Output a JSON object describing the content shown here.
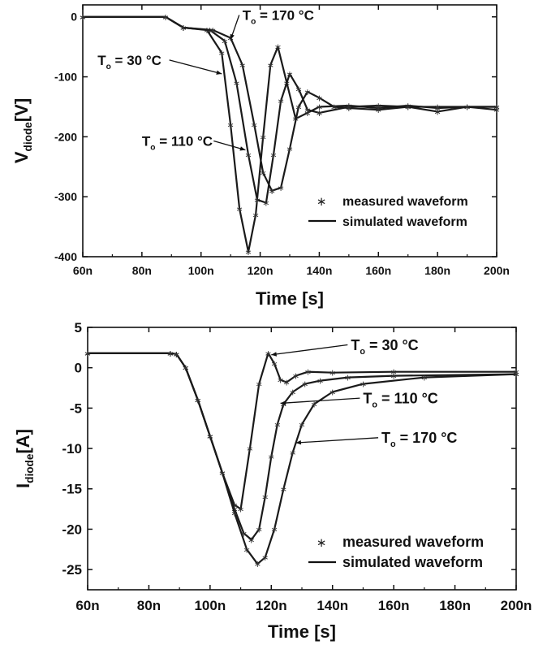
{
  "chart_data": [
    {
      "type": "line",
      "xlabel": "Time [s]",
      "ylabel": {
        "main": "V",
        "sub": "diode",
        "unit": "[V]"
      },
      "xlim": [
        60,
        200
      ],
      "ylim": [
        -400,
        20
      ],
      "x_unit_suffix": "n",
      "xticks": [
        60,
        80,
        100,
        120,
        140,
        160,
        180,
        200
      ],
      "yticks": [
        0,
        -100,
        -200,
        -300,
        -400
      ],
      "grid": false,
      "legend": {
        "placement": "bottom-right",
        "entries": [
          {
            "marker": "star",
            "label": "measured waveform"
          },
          {
            "marker": "line",
            "label": "simulated waveform"
          }
        ]
      },
      "series": [
        {
          "name": "To = 30 °C",
          "ann_main": "T",
          "ann_sub": "o",
          "ann_rest": " = 30 °C",
          "x": [
            60,
            88,
            94,
            102,
            107,
            110,
            113,
            116,
            118.5,
            121,
            123.5,
            126,
            129,
            132,
            136,
            140,
            150,
            160,
            170,
            180,
            190,
            200
          ],
          "y": [
            0,
            0,
            -18,
            -22,
            -60,
            -180,
            -320,
            -392,
            -330,
            -200,
            -80,
            -50,
            -110,
            -170,
            -160,
            -150,
            -148,
            -152,
            -148,
            -152,
            -150,
            -150
          ]
        },
        {
          "name": "To = 110 °C",
          "ann_main": "T",
          "ann_sub": "o",
          "ann_rest": " = 110 °C",
          "x": [
            60,
            88,
            94,
            103,
            108,
            112,
            116,
            119,
            122,
            124.5,
            127,
            130,
            133,
            136,
            140,
            150,
            160,
            170,
            180,
            190,
            200
          ],
          "y": [
            0,
            0,
            -18,
            -22,
            -40,
            -110,
            -230,
            -305,
            -310,
            -230,
            -140,
            -95,
            -120,
            -155,
            -160,
            -150,
            -148,
            -150,
            -150,
            -150,
            -150
          ]
        },
        {
          "name": "To = 170 °C",
          "ann_main": "T",
          "ann_sub": "o",
          "ann_rest": " = 170 °C",
          "x": [
            60,
            88,
            94,
            104,
            110,
            114,
            118,
            121,
            124,
            127,
            130,
            133,
            136,
            140,
            145,
            150,
            160,
            170,
            180,
            190,
            200
          ],
          "y": [
            0,
            0,
            -18,
            -22,
            -35,
            -80,
            -180,
            -260,
            -290,
            -285,
            -220,
            -150,
            -125,
            -135,
            -150,
            -152,
            -155,
            -150,
            -158,
            -150,
            -155
          ]
        }
      ],
      "annotations": [
        {
          "series": 2,
          "text_x": 114,
          "text_y": -5,
          "arrow_to": [
            110,
            -38
          ]
        },
        {
          "series": 0,
          "text_x": 65,
          "text_y": -80,
          "arrow_to": [
            107,
            -95
          ]
        },
        {
          "series": 1,
          "text_x": 80,
          "text_y": -215,
          "arrow_to": [
            115,
            -222
          ]
        }
      ]
    },
    {
      "type": "line",
      "xlabel": "Time [s]",
      "ylabel": {
        "main": "I",
        "sub": "diode",
        "unit": "[A]"
      },
      "xlim": [
        60,
        200
      ],
      "ylim": [
        -27.5,
        5
      ],
      "x_unit_suffix": "n",
      "xticks": [
        60,
        80,
        100,
        120,
        140,
        160,
        180,
        200
      ],
      "yticks": [
        5,
        0,
        -5,
        -10,
        -15,
        -20,
        -25
      ],
      "grid": false,
      "legend": {
        "placement": "bottom-right",
        "entries": [
          {
            "marker": "star",
            "label": "measured waveform"
          },
          {
            "marker": "line",
            "label": "simulated waveform"
          }
        ]
      },
      "series": [
        {
          "name": "To = 30 °C",
          "ann_main": "T",
          "ann_sub": "o",
          "ann_rest": " = 30 °C",
          "x": [
            60,
            87,
            89,
            92,
            96,
            100,
            104,
            108,
            110,
            113,
            116,
            119,
            121,
            123,
            125,
            128,
            132,
            140,
            160,
            200
          ],
          "y": [
            1.8,
            1.8,
            1.7,
            0,
            -4,
            -8.5,
            -13,
            -17,
            -17.5,
            -10,
            -2,
            1.8,
            0.5,
            -1.5,
            -1.8,
            -1,
            -0.5,
            -0.6,
            -0.5,
            -0.5
          ]
        },
        {
          "name": "To = 110 °C",
          "ann_main": "T",
          "ann_sub": "o",
          "ann_rest": " = 110 °C",
          "x": [
            60,
            87,
            89,
            92,
            96,
            100,
            104,
            108,
            111,
            113.5,
            116,
            118,
            120,
            122,
            124,
            127,
            131,
            136,
            145,
            160,
            200
          ],
          "y": [
            1.8,
            1.8,
            1.7,
            0,
            -4,
            -8.5,
            -13,
            -17.5,
            -20.5,
            -21.3,
            -20,
            -16,
            -11,
            -7,
            -4.5,
            -3,
            -2,
            -1.6,
            -1.2,
            -1,
            -0.8
          ]
        },
        {
          "name": "To = 170 °C",
          "ann_main": "T",
          "ann_sub": "o",
          "ann_rest": " = 170 °C",
          "x": [
            60,
            87,
            89,
            92,
            96,
            100,
            104,
            108,
            112,
            115.5,
            118,
            121,
            124,
            127,
            130,
            134,
            140,
            150,
            170,
            200
          ],
          "y": [
            1.8,
            1.8,
            1.7,
            0,
            -4,
            -8.5,
            -13,
            -18,
            -22.5,
            -24.3,
            -23.5,
            -20,
            -15,
            -10.5,
            -7,
            -4.5,
            -3,
            -2,
            -1.2,
            -0.8
          ]
        }
      ],
      "annotations": [
        {
          "series": 0,
          "text_x": 146,
          "text_y": 2.2,
          "arrow_to": [
            120,
            1.6
          ]
        },
        {
          "series": 1,
          "text_x": 150,
          "text_y": -4.4,
          "arrow_to": [
            123,
            -4.4
          ]
        },
        {
          "series": 2,
          "text_x": 156,
          "text_y": -9.3,
          "arrow_to": [
            128,
            -9.3
          ]
        }
      ]
    }
  ]
}
